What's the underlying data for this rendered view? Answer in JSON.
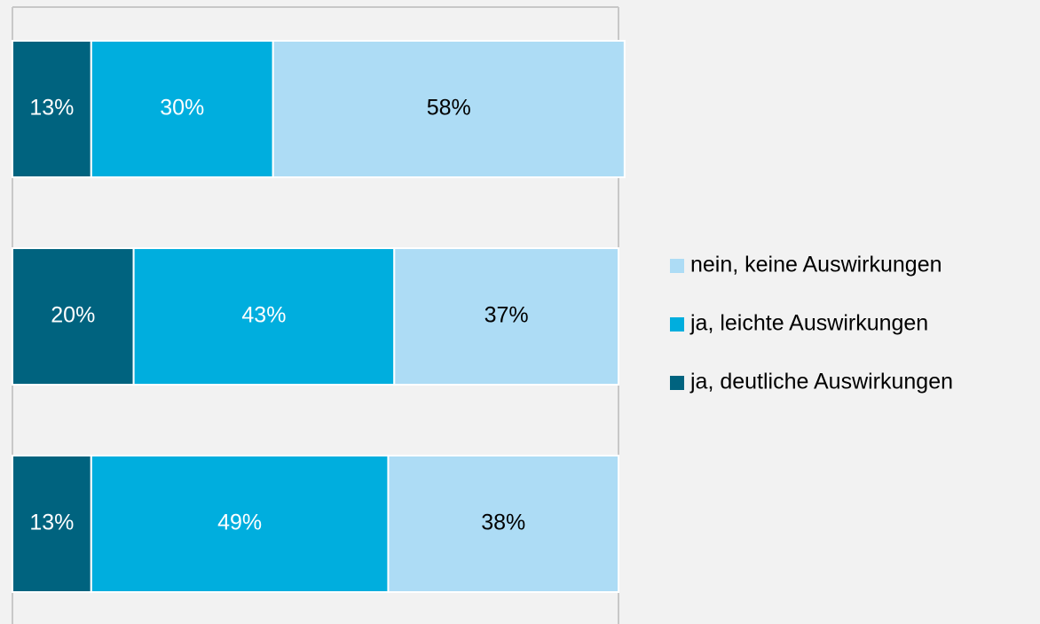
{
  "chart_data": {
    "type": "stacked_barh",
    "categories": [
      null,
      null,
      null
    ],
    "xlim": [
      0,
      100
    ],
    "legend": "right",
    "series": [
      {
        "name": "ja, deutliche Auswirkungen",
        "color": "#00637f",
        "label_color": "#ffffff",
        "values": [
          13,
          20,
          13
        ],
        "value_labels": [
          "13%",
          "20%",
          "13%"
        ]
      },
      {
        "name": "ja, leichte Auswirkungen",
        "color": "#00aede",
        "label_color": "#ffffff",
        "values": [
          30,
          43,
          49
        ],
        "value_labels": [
          "30%",
          "43%",
          "49%"
        ]
      },
      {
        "name": "nein, keine Auswirkungen",
        "color": "#addcf5",
        "label_color": "#000000",
        "values": [
          58,
          37,
          38
        ],
        "value_labels": [
          "58%",
          "37%",
          "38%"
        ]
      }
    ]
  }
}
